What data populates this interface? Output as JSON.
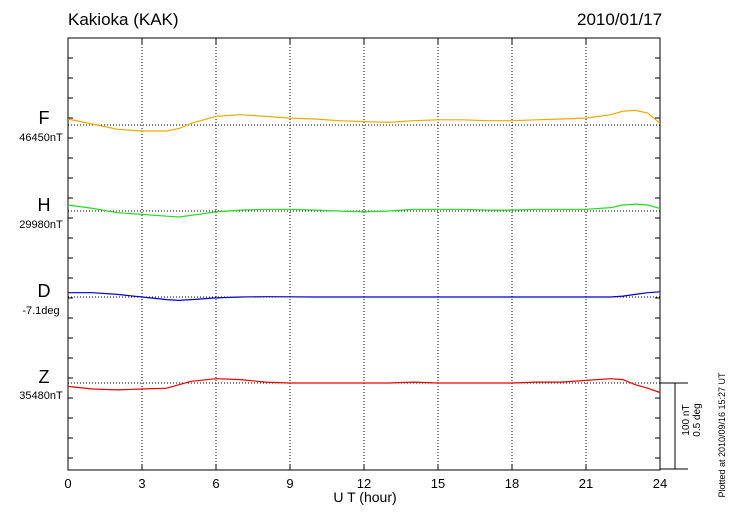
{
  "header": {
    "station": "Kakioka (KAK)",
    "date": "2010/01/17"
  },
  "footer": {
    "plotted": "Plotted at 2010/09/16 15:27 UT"
  },
  "scale_bar": {
    "nT_label": "100 nT",
    "deg_label": "0.5 deg",
    "nT_value": 100,
    "deg_value": 0.5
  },
  "colors": {
    "F": "#f0a800",
    "H": "#22dd22",
    "D": "#0000cc",
    "Z": "#ee0000"
  },
  "chart_data": {
    "type": "line",
    "title": "Kakioka (KAK)",
    "xlabel": "U T (hour)",
    "ylabel": "",
    "xlim": [
      0,
      24
    ],
    "x_ticks": [
      0,
      3,
      6,
      9,
      12,
      15,
      18,
      21,
      24
    ],
    "x_tick_labels": [
      "0",
      "3",
      "6",
      "9",
      "12",
      "15",
      "18",
      "21",
      "24"
    ],
    "grid": true,
    "x": [
      0,
      1,
      2,
      3,
      4,
      4.5,
      5,
      6,
      7,
      8,
      9,
      10,
      11,
      12,
      13,
      14,
      15,
      16,
      17,
      18,
      19,
      20,
      21,
      22,
      22.5,
      23,
      23.5,
      24
    ],
    "series": [
      {
        "name": "F",
        "base_label": "46450nT",
        "baseline": 46450,
        "unit": "nT",
        "values": [
          46457,
          46451,
          46445,
          46443,
          46443,
          46446,
          46452,
          46460,
          46462,
          46460,
          46458,
          46457,
          46455,
          46454,
          46453,
          46455,
          46456,
          46456,
          46455,
          46455,
          46456,
          46457,
          46458,
          46462,
          46466,
          46467,
          46464,
          46452
        ]
      },
      {
        "name": "H",
        "base_label": "29980nT",
        "baseline": 29980,
        "unit": "nT",
        "values": [
          29987,
          29983,
          29978,
          29976,
          29974,
          29973,
          29975,
          29979,
          29981,
          29982,
          29982,
          29981,
          29980,
          29979,
          29980,
          29982,
          29982,
          29982,
          29981,
          29981,
          29982,
          29982,
          29982,
          29984,
          29987,
          29988,
          29987,
          29983
        ]
      },
      {
        "name": "D",
        "base_label": "-7.1deg",
        "baseline": -7.1,
        "unit": "deg",
        "values": [
          -7.075,
          -7.075,
          -7.085,
          -7.1,
          -7.115,
          -7.12,
          -7.115,
          -7.105,
          -7.1,
          -7.098,
          -7.099,
          -7.1,
          -7.1,
          -7.1,
          -7.1,
          -7.1,
          -7.1,
          -7.1,
          -7.1,
          -7.1,
          -7.1,
          -7.1,
          -7.1,
          -7.1,
          -7.095,
          -7.085,
          -7.075,
          -7.07
        ]
      },
      {
        "name": "Z",
        "base_label": "35480nT",
        "baseline": 35480,
        "unit": "nT",
        "values": [
          35476,
          35473,
          35472,
          35473,
          35474,
          35478,
          35482,
          35485,
          35484,
          35481,
          35480,
          35480,
          35480,
          35480,
          35480,
          35481,
          35480,
          35480,
          35480,
          35480,
          35481,
          35481,
          35483,
          35485,
          35484,
          35478,
          35474,
          35469
        ]
      }
    ]
  }
}
